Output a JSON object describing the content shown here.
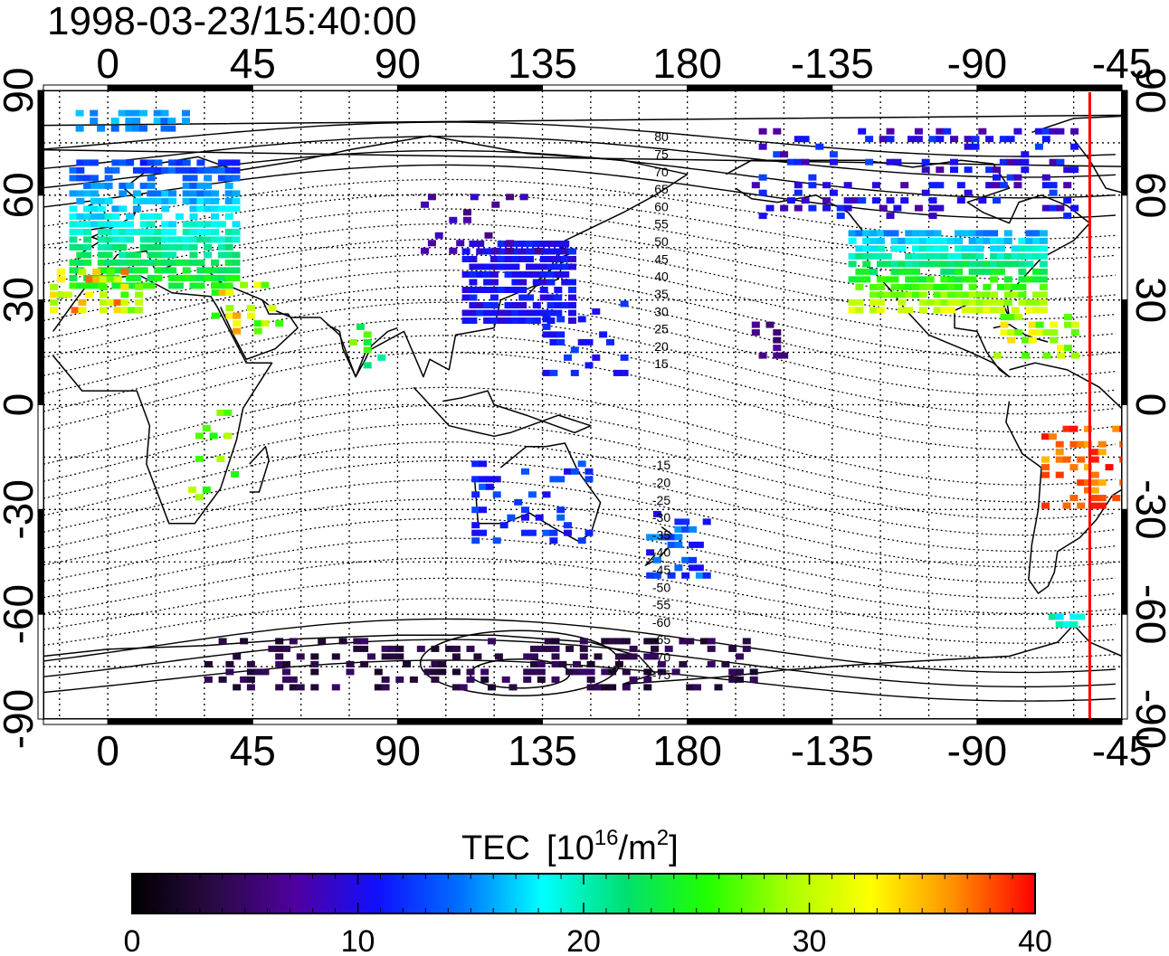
{
  "timestamp": "1998-03-23/15:40:00",
  "top_ticks": [
    "0",
    "45",
    "90",
    "135",
    "180",
    "-135",
    "-90",
    "-45"
  ],
  "bottom_ticks": [
    "0",
    "45",
    "90",
    "135",
    "180",
    "-135",
    "-90",
    "-45"
  ],
  "left_ticks": [
    "90",
    "60",
    "30",
    "0",
    "-30",
    "-60",
    "-90"
  ],
  "right_ticks": [
    "90",
    "60",
    "30",
    "0",
    "-30",
    "-60",
    "-90"
  ],
  "contour_labels_north": [
    "80",
    "75",
    "70",
    "65",
    "60",
    "55",
    "50",
    "45",
    "40",
    "35",
    "30",
    "25",
    "20",
    "15"
  ],
  "contour_labels_south": [
    "-15",
    "-20",
    "-25",
    "-30",
    "-35",
    "-40",
    "-45",
    "-50",
    "-55",
    "-60",
    "-65",
    "-70",
    "-75"
  ],
  "colorbar": {
    "title": "TEC",
    "unit_base": "[10",
    "unit_exp": "16",
    "unit_mid": "/m",
    "unit_exp2": "2",
    "unit_end": "]",
    "ticks": [
      "0",
      "10",
      "20",
      "30",
      "40"
    ],
    "min": 0,
    "max": 40,
    "stops": [
      "#000000",
      "#2a0a45",
      "#5000a0",
      "#1010ff",
      "#0070ff",
      "#00ffff",
      "#00e070",
      "#20ff00",
      "#aaff00",
      "#ffff00",
      "#ff9000",
      "#ff0000"
    ]
  },
  "map": {
    "lon_range": [
      -20,
      315
    ],
    "lat_range": [
      -90,
      90
    ],
    "terminator_lon": -55,
    "terminator_color": "#ff0000"
  }
}
